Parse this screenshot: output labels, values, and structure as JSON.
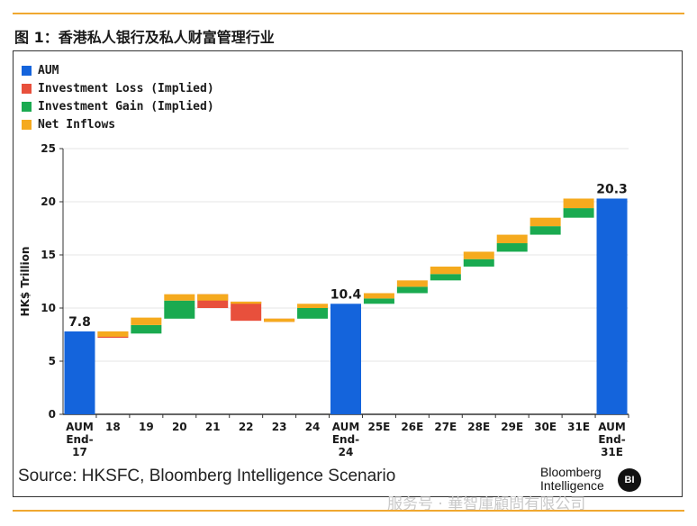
{
  "figure_title": "图 1：香港私人银行及私人财富管理行业",
  "source_text": "Source: HKSFC, Bloomberg Intelligence Scenario",
  "logo": {
    "line1": "Bloomberg",
    "line2": "Intelligence",
    "badge": "BI"
  },
  "watermark": "服务号 · 華智庫顧問有限公司",
  "colors": {
    "aum": "#1464dc",
    "loss": "#e8503c",
    "gain": "#1aaa50",
    "inflow": "#f5aa1e",
    "accent_rule": "#f0a830"
  },
  "chart_data": {
    "type": "bar",
    "subtype": "waterfall",
    "ylabel": "HK$ Trillion",
    "ylim": [
      0,
      25
    ],
    "yticks": [
      0,
      5,
      10,
      15,
      20,
      25
    ],
    "grid": true,
    "legend_position": "top-left",
    "legend": [
      {
        "key": "aum",
        "label": "AUM"
      },
      {
        "key": "loss",
        "label": "Investment Loss (Implied)"
      },
      {
        "key": "gain",
        "label": "Investment Gain (Implied)"
      },
      {
        "key": "inflow",
        "label": "Net Inflows"
      }
    ],
    "categories": [
      [
        "AUM",
        "End-",
        "17"
      ],
      [
        "18"
      ],
      [
        "19"
      ],
      [
        "20"
      ],
      [
        "21"
      ],
      [
        "22"
      ],
      [
        "23"
      ],
      [
        "24"
      ],
      [
        "AUM",
        "End-",
        "24"
      ],
      [
        "25E"
      ],
      [
        "26E"
      ],
      [
        "27E"
      ],
      [
        "28E"
      ],
      [
        "29E"
      ],
      [
        "30E"
      ],
      [
        "31E"
      ],
      [
        "AUM",
        "End-",
        "31E"
      ]
    ],
    "bars": [
      {
        "type": "total",
        "value": 7.8,
        "label": "7.8"
      },
      {
        "type": "step",
        "start": 7.8,
        "gain": 0,
        "loss": 0.6,
        "inflow": 0.5
      },
      {
        "type": "step",
        "start": 7.6,
        "gain": 0.8,
        "loss": 0,
        "inflow": 0.7
      },
      {
        "type": "step",
        "start": 9.0,
        "gain": 1.7,
        "loss": 0,
        "inflow": 0.6
      },
      {
        "type": "step",
        "start": 11.3,
        "gain": 0,
        "loss": 1.3,
        "inflow": 0.6
      },
      {
        "type": "step",
        "start": 10.6,
        "gain": 0,
        "loss": 1.8,
        "inflow": 0.2
      },
      {
        "type": "step",
        "start": 9.0,
        "gain": 0,
        "loss": 0.3,
        "inflow": 0.3
      },
      {
        "type": "step",
        "start": 9.0,
        "gain": 1.0,
        "loss": 0,
        "inflow": 0.4
      },
      {
        "type": "total",
        "value": 10.4,
        "label": "10.4"
      },
      {
        "type": "step",
        "start": 10.4,
        "gain": 0.5,
        "loss": 0,
        "inflow": 0.5
      },
      {
        "type": "step",
        "start": 11.4,
        "gain": 0.6,
        "loss": 0,
        "inflow": 0.6
      },
      {
        "type": "step",
        "start": 12.6,
        "gain": 0.6,
        "loss": 0,
        "inflow": 0.7
      },
      {
        "type": "step",
        "start": 13.9,
        "gain": 0.7,
        "loss": 0,
        "inflow": 0.7
      },
      {
        "type": "step",
        "start": 15.3,
        "gain": 0.8,
        "loss": 0,
        "inflow": 0.8
      },
      {
        "type": "step",
        "start": 16.9,
        "gain": 0.8,
        "loss": 0,
        "inflow": 0.8
      },
      {
        "type": "step",
        "start": 18.5,
        "gain": 0.9,
        "loss": 0,
        "inflow": 0.9
      },
      {
        "type": "total",
        "value": 20.3,
        "label": "20.3"
      }
    ]
  }
}
